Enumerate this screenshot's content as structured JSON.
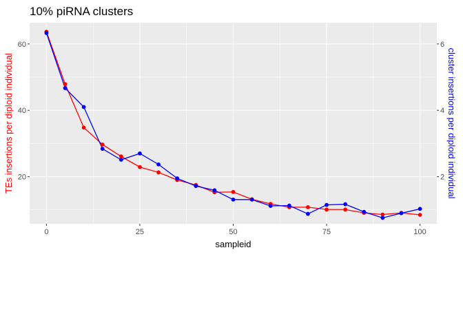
{
  "chart_data": {
    "type": "line",
    "title": "10% piRNA clusters",
    "xlabel": "sampleid",
    "ylabel": "TEs insertions per diploid individual",
    "y2label": "cluster insertions per diploid individual",
    "xlim": [
      -4.5,
      104.5
    ],
    "ylim": [
      5.8,
      66.4
    ],
    "y2lim": [
      0.58,
      6.64
    ],
    "x_ticks": [
      0,
      25,
      50,
      75,
      100
    ],
    "y_ticks": [
      20,
      40,
      60
    ],
    "y2_ticks": [
      2,
      4,
      6
    ],
    "grid": true,
    "legend": "none",
    "colors": {
      "te": "#ff0000",
      "cluster": "#0000ff",
      "panel": "#ebebeb"
    },
    "x": [
      0,
      5,
      10,
      15,
      20,
      25,
      30,
      35,
      40,
      45,
      50,
      55,
      60,
      65,
      70,
      75,
      80,
      85,
      90,
      95,
      100
    ],
    "series": [
      {
        "axis": "left",
        "color": "#ff0000",
        "values": [
          63.7,
          47.9,
          34.8,
          29.7,
          26.1,
          22.9,
          21.3,
          19.0,
          17.5,
          15.3,
          15.4,
          13.2,
          11.8,
          10.8,
          10.8,
          10.1,
          10.1,
          9.1,
          8.6,
          9.1,
          8.5
        ]
      },
      {
        "axis": "right",
        "color": "#0000ff",
        "values": [
          6.33,
          4.67,
          4.1,
          2.84,
          2.51,
          2.7,
          2.37,
          1.95,
          1.72,
          1.59,
          1.31,
          1.31,
          1.12,
          1.13,
          0.88,
          1.15,
          1.17,
          0.94,
          0.76,
          0.9,
          1.03
        ]
      }
    ]
  }
}
